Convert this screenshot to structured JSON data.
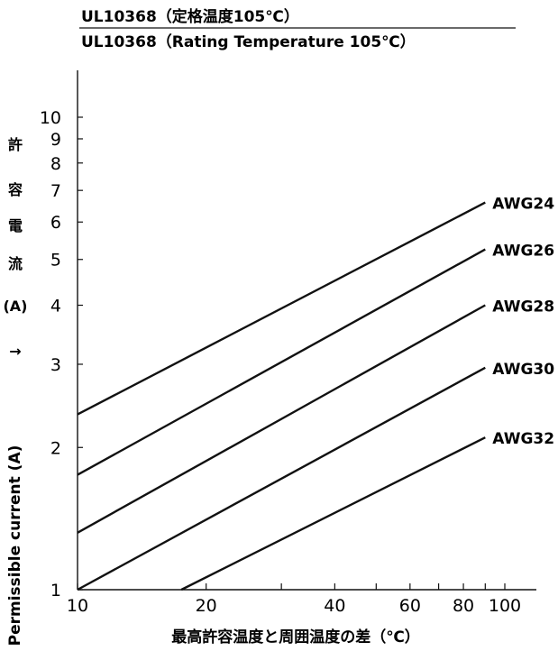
{
  "chart_data": {
    "type": "line",
    "title": "UL10368（定格温度105℃）",
    "subtitle": "UL10368（Rating Temperature 105℃）",
    "xlabel": "最高許容温度と周囲温度の差（℃）",
    "ylabel_jp": [
      "許",
      "容",
      "電",
      "流",
      "(A)",
      "→"
    ],
    "ylabel_en": "Permissible current (A)",
    "x_scale": "log",
    "y_scale": "log",
    "xlim": [
      10,
      100
    ],
    "ylim": [
      1,
      10
    ],
    "x_ticks": [
      10,
      20,
      40,
      60,
      80,
      100
    ],
    "x_minor_ticks": [
      30,
      50,
      70,
      90
    ],
    "x_tick_labels": [
      "10",
      "20",
      "40",
      "60",
      "80",
      "100"
    ],
    "y_ticks": [
      1,
      2,
      3,
      4,
      5,
      6,
      7,
      8,
      9,
      10
    ],
    "y_tick_labels": [
      "1",
      "2",
      "3",
      "4",
      "5",
      "6",
      "7",
      "8",
      "9",
      "10"
    ],
    "grid": false,
    "series": [
      {
        "name": "AWG24",
        "x": [
          10,
          90
        ],
        "y": [
          2.35,
          6.6
        ]
      },
      {
        "name": "AWG26",
        "x": [
          10,
          90
        ],
        "y": [
          1.75,
          5.25
        ]
      },
      {
        "name": "AWG28",
        "x": [
          10,
          90
        ],
        "y": [
          1.32,
          4.0
        ]
      },
      {
        "name": "AWG30",
        "x": [
          10,
          90
        ],
        "y": [
          1.0,
          2.95
        ]
      },
      {
        "name": "AWG32",
        "x": [
          17.5,
          90
        ],
        "y": [
          1.0,
          2.1
        ]
      }
    ]
  }
}
